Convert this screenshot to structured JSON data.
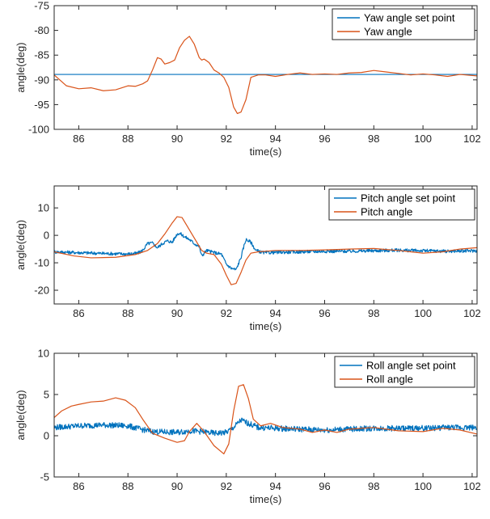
{
  "chart_data": [
    {
      "type": "line",
      "xlabel": "time(s)",
      "ylabel": "angle(deg)",
      "xlim": [
        85,
        102.2
      ],
      "ylim": [
        -100,
        -75
      ],
      "xticks": [
        86,
        88,
        90,
        92,
        94,
        96,
        98,
        100,
        102
      ],
      "yticks": [
        -100,
        -95,
        -90,
        -85,
        -80,
        -75
      ],
      "grid": false,
      "legend_position": "top-right",
      "series": [
        {
          "name": "Yaw angle set point",
          "color": "#0072BD",
          "x": [
            85,
            102.2
          ],
          "y": [
            -88.9,
            -88.9
          ]
        },
        {
          "name": "Yaw angle",
          "color": "#D95319",
          "x": [
            85,
            85.5,
            86,
            86.5,
            87,
            87.5,
            88,
            88.3,
            88.6,
            88.8,
            89.0,
            89.2,
            89.35,
            89.5,
            89.7,
            89.9,
            90.1,
            90.3,
            90.5,
            90.7,
            90.9,
            91.0,
            91.1,
            91.3,
            91.5,
            91.7,
            91.9,
            92.1,
            92.3,
            92.45,
            92.6,
            92.8,
            93.0,
            93.3,
            93.6,
            94,
            94.5,
            95,
            95.5,
            96,
            96.5,
            97,
            97.5,
            98,
            98.5,
            99,
            99.5,
            100,
            100.5,
            101,
            101.5,
            102.2
          ],
          "y": [
            -89,
            -91.2,
            -91.8,
            -91.6,
            -92.2,
            -92.0,
            -91.2,
            -91.3,
            -90.8,
            -90.2,
            -88.0,
            -85.5,
            -85.8,
            -86.8,
            -86.5,
            -86.0,
            -83.5,
            -82.0,
            -81.2,
            -82.8,
            -85.5,
            -86.0,
            -85.8,
            -86.5,
            -88.0,
            -88.6,
            -89.5,
            -91.5,
            -95.5,
            -96.8,
            -96.5,
            -94.0,
            -89.5,
            -89.0,
            -89.0,
            -89.3,
            -88.9,
            -88.6,
            -88.9,
            -88.8,
            -88.9,
            -88.6,
            -88.5,
            -88.1,
            -88.4,
            -88.7,
            -89.0,
            -88.8,
            -89.0,
            -89.3,
            -88.9,
            -89.2
          ]
        }
      ]
    },
    {
      "type": "line",
      "xlabel": "time(s)",
      "ylabel": "angle(deg)",
      "xlim": [
        85,
        102.2
      ],
      "ylim": [
        -25,
        18
      ],
      "xticks": [
        86,
        88,
        90,
        92,
        94,
        96,
        98,
        100,
        102
      ],
      "yticks": [
        -20,
        -10,
        0,
        10
      ],
      "grid": false,
      "legend_position": "top-right",
      "series": [
        {
          "name": "Pitch angle set point",
          "color": "#0072BD",
          "noise": 0.6,
          "x": [
            85,
            86,
            87,
            88,
            88.4,
            88.6,
            88.8,
            89.0,
            89.2,
            89.4,
            89.6,
            89.8,
            90.0,
            90.1,
            90.3,
            90.5,
            90.7,
            90.9,
            91.0,
            91.2,
            91.4,
            91.6,
            91.8,
            92.0,
            92.2,
            92.4,
            92.6,
            92.7,
            92.8,
            93.0,
            93.2,
            93.5,
            94,
            95,
            96,
            97,
            98,
            99,
            100,
            101,
            102.2
          ],
          "y": [
            -6.0,
            -6.3,
            -6.6,
            -6.8,
            -6.5,
            -5.5,
            -3.0,
            -2.8,
            -4.5,
            -3.0,
            -2.0,
            -2.5,
            0.5,
            0.8,
            -0.5,
            -1.5,
            -3.0,
            -4.0,
            -7.5,
            -5.5,
            -6.0,
            -6.5,
            -6.8,
            -10.5,
            -12.0,
            -12.5,
            -8.0,
            -4.5,
            -1.5,
            -2.5,
            -5.5,
            -6.3,
            -6.2,
            -6.0,
            -5.8,
            -5.8,
            -5.6,
            -5.4,
            -5.6,
            -5.8,
            -5.6
          ]
        },
        {
          "name": "Pitch angle",
          "color": "#D95319",
          "x": [
            85,
            85.8,
            86.5,
            87.5,
            88.3,
            88.8,
            89.2,
            89.5,
            89.8,
            90.0,
            90.2,
            90.4,
            90.6,
            90.8,
            91.0,
            91.2,
            91.5,
            91.8,
            92.0,
            92.2,
            92.4,
            92.6,
            92.8,
            93.0,
            93.3,
            93.6,
            94,
            95,
            96,
            97,
            98,
            99,
            100,
            100.8,
            101.5,
            102.2
          ],
          "y": [
            -6,
            -7.5,
            -8.2,
            -8.0,
            -7.0,
            -5.5,
            -3.0,
            0.5,
            4.5,
            6.8,
            6.5,
            3.5,
            0.5,
            -2.5,
            -5.5,
            -6.5,
            -7.0,
            -10.5,
            -14.5,
            -18.0,
            -17.5,
            -13.5,
            -9.0,
            -6.5,
            -6.0,
            -5.8,
            -5.5,
            -5.5,
            -5.3,
            -5.0,
            -4.8,
            -5.5,
            -6.5,
            -6.0,
            -5.0,
            -4.5
          ]
        }
      ]
    },
    {
      "type": "line",
      "xlabel": "time(s)",
      "ylabel": "angle(deg)",
      "xlim": [
        85,
        102.2
      ],
      "ylim": [
        -5,
        10
      ],
      "xticks": [
        86,
        88,
        90,
        92,
        94,
        96,
        98,
        100,
        102
      ],
      "yticks": [
        -5,
        0,
        5,
        10
      ],
      "grid": false,
      "legend_position": "top-right",
      "series": [
        {
          "name": "Roll angle set point",
          "color": "#0072BD",
          "noise": 0.35,
          "x": [
            85,
            86,
            87,
            88,
            88.5,
            89,
            90,
            90.5,
            91,
            91.5,
            92,
            92.3,
            92.6,
            92.9,
            93.3,
            94,
            95,
            96,
            97,
            98,
            99,
            100,
            101,
            102.2
          ],
          "y": [
            1.0,
            1.2,
            1.3,
            1.2,
            0.8,
            0.5,
            0.4,
            0.6,
            0.5,
            0.3,
            0.4,
            1.0,
            1.9,
            1.5,
            1.0,
            0.9,
            0.8,
            0.7,
            0.8,
            0.9,
            0.9,
            0.9,
            1.0,
            1.0
          ]
        },
        {
          "name": "Roll angle",
          "color": "#D95319",
          "x": [
            85,
            85.3,
            85.7,
            86,
            86.5,
            87,
            87.5,
            87.9,
            88.3,
            88.6,
            89.0,
            89.5,
            90.0,
            90.3,
            90.5,
            90.8,
            91.1,
            91.5,
            91.9,
            92.1,
            92.3,
            92.5,
            92.7,
            92.9,
            93.1,
            93.4,
            93.8,
            94.3,
            95,
            95.5,
            96,
            96.5,
            97,
            98,
            99,
            100,
            100.8,
            101.5,
            102.2
          ],
          "y": [
            2.2,
            3.0,
            3.6,
            3.8,
            4.1,
            4.2,
            4.6,
            4.3,
            3.4,
            2.0,
            0.3,
            -0.3,
            -0.8,
            -0.6,
            0.5,
            1.5,
            0.5,
            -1.2,
            -2.2,
            -1.0,
            3.0,
            6.0,
            6.2,
            4.5,
            2.0,
            1.2,
            1.5,
            1.0,
            0.8,
            0.4,
            0.7,
            0.4,
            0.8,
            1.0,
            0.6,
            0.5,
            0.9,
            0.7,
            0.2
          ]
        }
      ]
    }
  ]
}
